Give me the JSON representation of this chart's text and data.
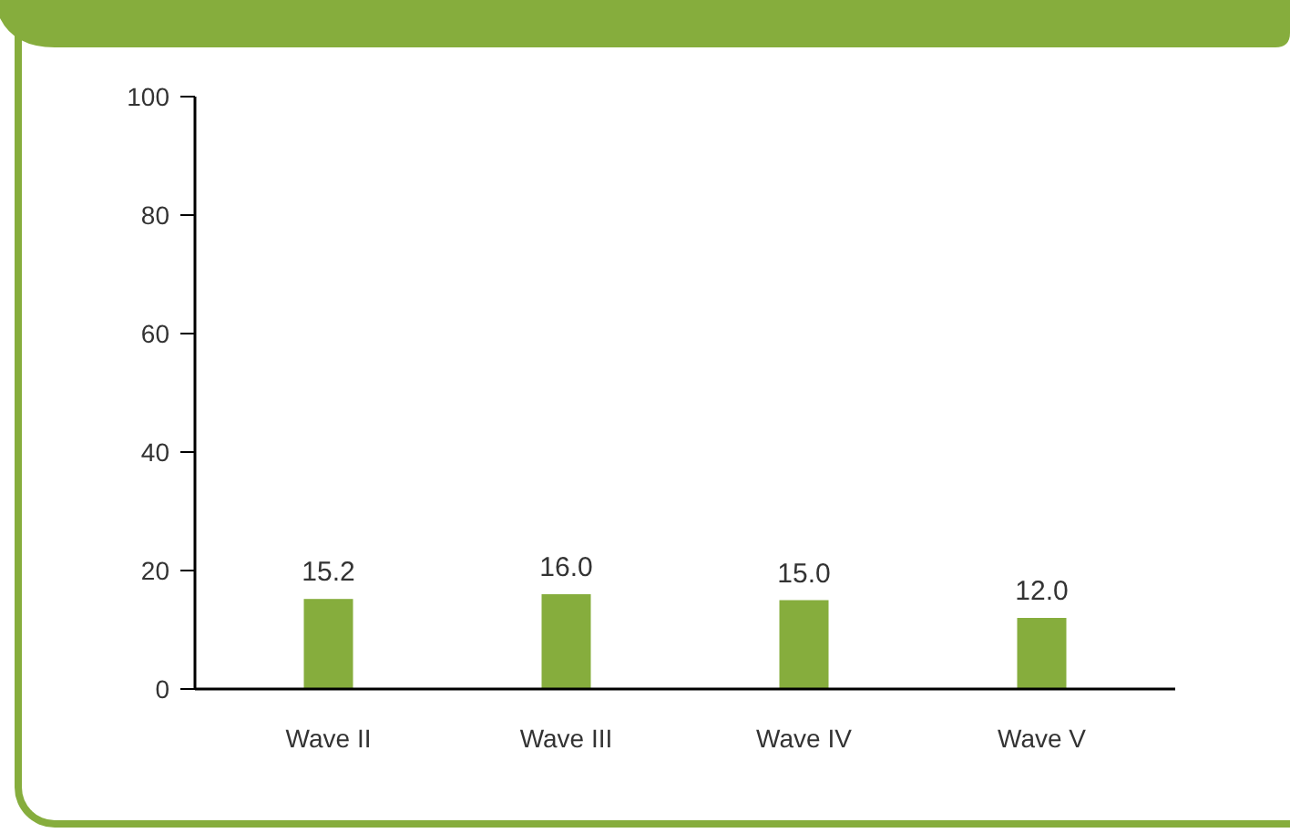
{
  "chart_data": {
    "type": "bar",
    "categories": [
      "Wave II",
      "Wave III",
      "Wave IV",
      "Wave V"
    ],
    "values": [
      15.2,
      16.0,
      15.0,
      12.0
    ],
    "color": "#86ad3d",
    "value_labels": [
      "15.2",
      "16.0",
      "15.0",
      "12.0"
    ],
    "ylim": [
      0,
      100
    ],
    "yticks": [
      0,
      20,
      40,
      60,
      80,
      100
    ],
    "grid": false
  }
}
